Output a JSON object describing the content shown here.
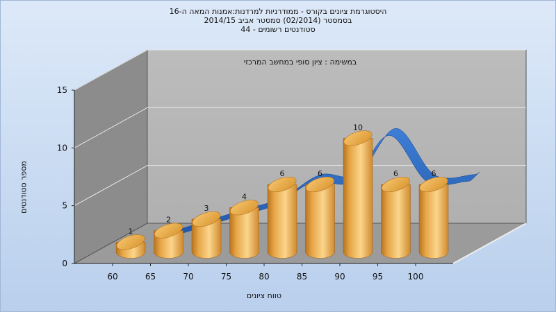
{
  "chart_data": {
    "type": "bar",
    "title_lines": [
      "היסטוגרמת ציונים בקורס - ממודרניות למרדנות:אמנות המאה ה-16",
      "בסמסטר  (02/2014)  סמסטר אביב 2014/15",
      "סטודנטים רשומים - 44"
    ],
    "subtitle": "במשימה : ציון סופי במחשב המרכזי",
    "xlabel": "טווח ציונים",
    "ylabel": "מספר סטודנטים",
    "categories": [
      "60",
      "65",
      "70",
      "75",
      "80",
      "85",
      "90",
      "95",
      "100"
    ],
    "values": [
      1,
      2,
      3,
      4,
      6,
      6,
      10,
      6,
      6
    ],
    "value_labels": [
      "1",
      "2",
      "3",
      "4",
      "6",
      "6",
      "10",
      "6",
      "6"
    ],
    "yticks": [
      "0",
      "5",
      "10",
      "15"
    ],
    "ylim": [
      0,
      15
    ],
    "grid": true,
    "overlay_curve": "smoothed distribution line (blue ribbon)",
    "colors": {
      "bar_light": "#fbd58c",
      "bar_mid": "#e6a546",
      "bar_dark": "#b8741f",
      "curve": "#2f6fc7",
      "back_wall": "#b7b7b7",
      "side_wall": "#8b8b8b",
      "floor": "#999999"
    }
  }
}
